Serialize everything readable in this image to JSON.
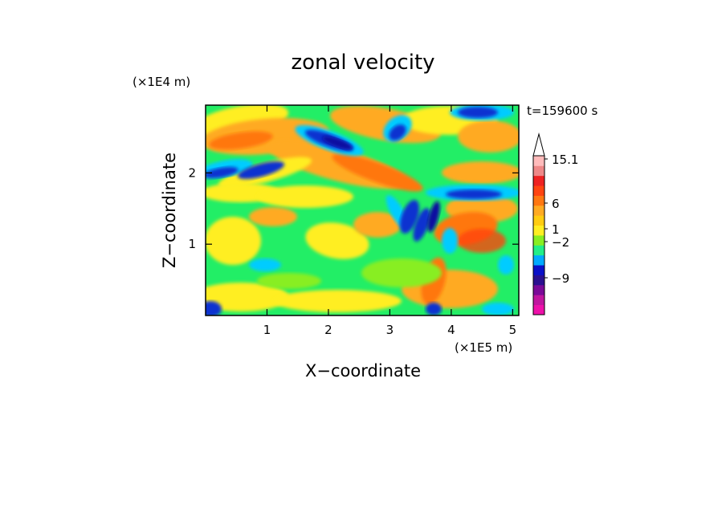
{
  "chart_data": {
    "type": "heatmap",
    "title": "zonal velocity",
    "xlabel": "X−coordinate",
    "ylabel": "Z−coordinate",
    "x_unit": "(×1E5 m)",
    "y_unit": "(×1E4 m)",
    "time_label": "t=159600 s",
    "xlim": [
      0,
      5.1
    ],
    "ylim": [
      0,
      2.95
    ],
    "x_ticks": [
      1,
      2,
      3,
      4,
      5
    ],
    "x_tick_labels": [
      "1",
      "2",
      "3",
      "4",
      "5"
    ],
    "y_ticks": [
      1,
      2
    ],
    "y_tick_labels": [
      "1",
      "2"
    ],
    "colorbar": {
      "colors": [
        "#ee11aa",
        "#c0169f",
        "#7a0a98",
        "#2a1090",
        "#0a10c8",
        "#00aaff",
        "#22ee88",
        "#88ee22",
        "#ffee22",
        "#ffcc11",
        "#ffaa22",
        "#ff7711",
        "#ff4411",
        "#ee2222",
        "#ee8888",
        "#ffbbbb"
      ],
      "tick_labels": [
        {
          "label": "15.1",
          "value": 15.1
        },
        {
          "label": "6",
          "value": 6
        },
        {
          "label": "1",
          "value": 1
        },
        {
          "label": "−2",
          "value": -2
        },
        {
          "label": "−9",
          "value": -9
        }
      ],
      "extend_max": true
    },
    "colormap_note": "blue = westward (negative), green/yellow near zero, red/orange = eastward (positive)"
  }
}
